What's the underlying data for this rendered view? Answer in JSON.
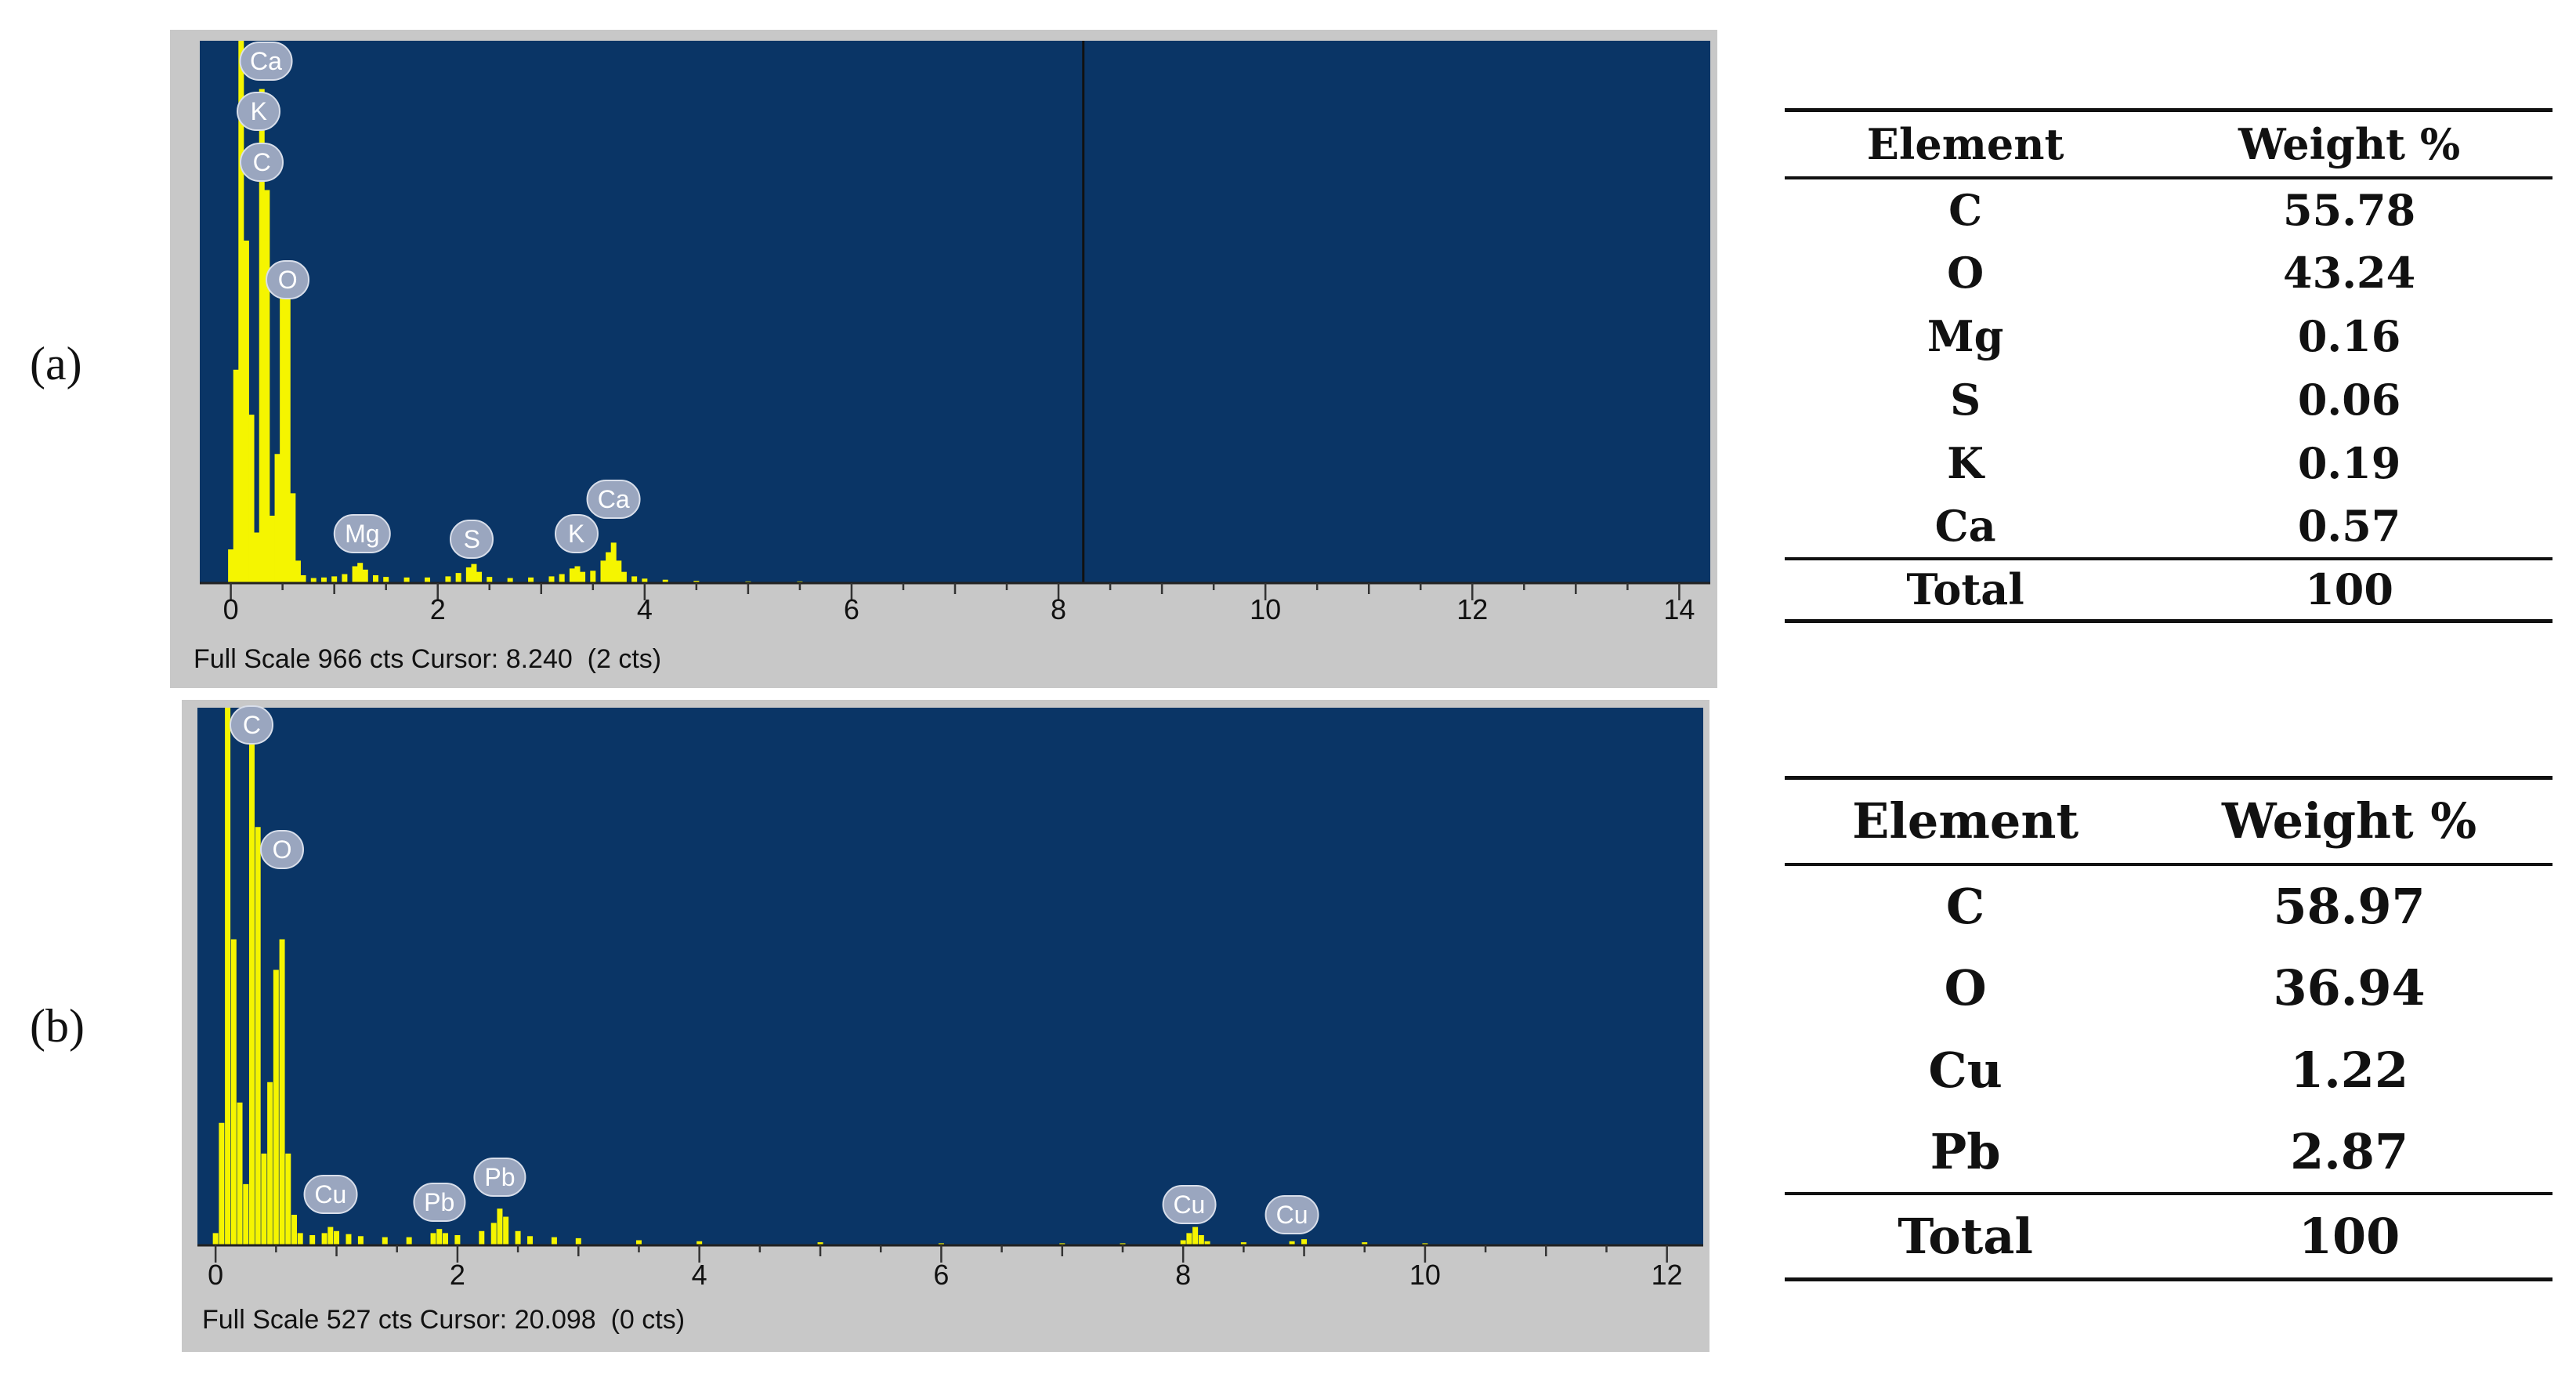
{
  "chart_data": [
    {
      "type": "bar",
      "panel": "(a)",
      "xlim": [
        -0.3,
        14.3
      ],
      "xticks": [
        0,
        2,
        4,
        6,
        8,
        10,
        12,
        14
      ],
      "ylim": [
        0,
        966
      ],
      "status_text": "Full Scale 966 cts Cursor: 8.240  (2 cts)",
      "cursor_x": 8.24,
      "bar_color": "#f5f500",
      "plot_bg": "#0a3566",
      "spectrum": {
        "x": [
          0.0,
          0.05,
          0.1,
          0.15,
          0.2,
          0.25,
          0.3,
          0.35,
          0.4,
          0.45,
          0.5,
          0.55,
          0.6,
          0.65,
          0.7,
          0.8,
          0.9,
          1.0,
          1.1,
          1.2,
          1.25,
          1.3,
          1.4,
          1.5,
          1.7,
          1.9,
          2.1,
          2.2,
          2.3,
          2.35,
          2.4,
          2.5,
          2.7,
          2.9,
          3.1,
          3.2,
          3.3,
          3.35,
          3.4,
          3.5,
          3.6,
          3.65,
          3.7,
          3.75,
          3.8,
          3.9,
          4.0,
          4.2,
          4.5,
          5.0,
          5.5,
          6.0,
          6.5,
          7.0,
          7.5,
          8.0,
          8.5,
          9.0,
          9.5,
          10.0,
          10.5,
          11.0,
          12.0,
          13.0,
          14.0
        ],
        "y": [
          60,
          380,
          966,
          610,
          300,
          90,
          880,
          700,
          120,
          230,
          520,
          540,
          160,
          40,
          14,
          9,
          10,
          12,
          16,
          30,
          36,
          24,
          14,
          11,
          10,
          10,
          12,
          18,
          28,
          34,
          20,
          11,
          9,
          10,
          12,
          16,
          26,
          30,
          20,
          22,
          40,
          55,
          72,
          40,
          20,
          12,
          8,
          6,
          4,
          3,
          3,
          2,
          2,
          2,
          2,
          2,
          2,
          2,
          2,
          2,
          2,
          1,
          1,
          1,
          1
        ]
      },
      "peak_labels": [
        {
          "text": "Ca",
          "x": 0.34,
          "y": 930
        },
        {
          "text": "K",
          "x": 0.27,
          "y": 840
        },
        {
          "text": "C",
          "x": 0.3,
          "y": 750
        },
        {
          "text": "O",
          "x": 0.55,
          "y": 540
        },
        {
          "text": "Mg",
          "x": 1.27,
          "y": 88
        },
        {
          "text": "S",
          "x": 2.33,
          "y": 78
        },
        {
          "text": "K",
          "x": 3.34,
          "y": 88
        },
        {
          "text": "Ca",
          "x": 3.7,
          "y": 150
        }
      ]
    },
    {
      "type": "bar",
      "panel": "(b)",
      "xlim": [
        -0.15,
        12.3
      ],
      "xticks": [
        0,
        2,
        4,
        6,
        8,
        10,
        12
      ],
      "ylim": [
        0,
        527
      ],
      "status_text": "Full Scale 527 cts Cursor: 20.098  (0 cts)",
      "bar_color": "#f5f500",
      "plot_bg": "#0a3566",
      "spectrum": {
        "x": [
          0.0,
          0.05,
          0.1,
          0.15,
          0.2,
          0.25,
          0.3,
          0.35,
          0.4,
          0.45,
          0.5,
          0.55,
          0.6,
          0.65,
          0.7,
          0.8,
          0.9,
          0.95,
          1.0,
          1.1,
          1.2,
          1.4,
          1.6,
          1.8,
          1.85,
          1.9,
          2.0,
          2.2,
          2.3,
          2.35,
          2.4,
          2.5,
          2.6,
          2.8,
          3.0,
          3.5,
          4.0,
          5.0,
          6.0,
          7.0,
          7.5,
          8.0,
          8.05,
          8.1,
          8.15,
          8.2,
          8.5,
          8.9,
          9.0,
          9.5,
          10.0,
          11.0,
          12.0
        ],
        "y": [
          12,
          120,
          527,
          300,
          140,
          60,
          527,
          410,
          90,
          160,
          270,
          300,
          90,
          30,
          12,
          10,
          12,
          18,
          14,
          11,
          9,
          8,
          8,
          12,
          16,
          12,
          10,
          14,
          22,
          36,
          28,
          14,
          9,
          8,
          7,
          5,
          4,
          3,
          2,
          2,
          2,
          5,
          12,
          18,
          10,
          4,
          3,
          4,
          6,
          3,
          2,
          1,
          1
        ]
      },
      "peak_labels": [
        {
          "text": "C",
          "x": 0.3,
          "y": 510
        },
        {
          "text": "O",
          "x": 0.55,
          "y": 388
        },
        {
          "text": "Cu",
          "x": 0.95,
          "y": 50
        },
        {
          "text": "Pb",
          "x": 1.85,
          "y": 42
        },
        {
          "text": "Pb",
          "x": 2.35,
          "y": 67
        },
        {
          "text": "Cu",
          "x": 8.05,
          "y": 40
        },
        {
          "text": "Cu",
          "x": 8.9,
          "y": 30
        }
      ]
    }
  ],
  "tables": [
    {
      "header": [
        "Element",
        "Weight %"
      ],
      "rows": [
        [
          "C",
          "55.78"
        ],
        [
          "O",
          "43.24"
        ],
        [
          "Mg",
          "0.16"
        ],
        [
          "S",
          "0.06"
        ],
        [
          "K",
          "0.19"
        ],
        [
          "Ca",
          "0.57"
        ]
      ],
      "total": [
        "Total",
        "100"
      ]
    },
    {
      "header": [
        "Element",
        "Weight %"
      ],
      "rows": [
        [
          "C",
          "58.97"
        ],
        [
          "O",
          "36.94"
        ],
        [
          "Cu",
          "1.22"
        ],
        [
          "Pb",
          "2.87"
        ]
      ],
      "total": [
        "Total",
        "100"
      ]
    }
  ]
}
